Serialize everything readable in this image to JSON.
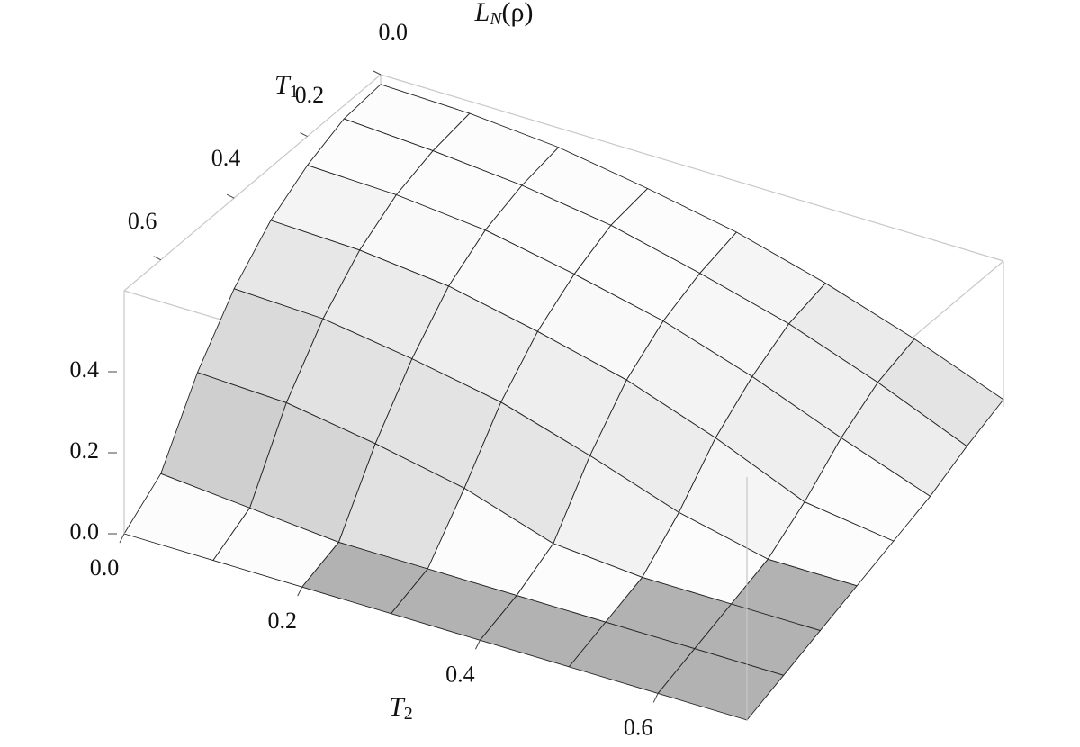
{
  "chart_data": {
    "type": "surface",
    "zlabel": [
      "L",
      "N",
      "(ρ)"
    ],
    "xlabel": [
      "T",
      "2"
    ],
    "ylabel": [
      "T",
      "1"
    ],
    "x": [
      0,
      0.1,
      0.2,
      0.3,
      0.4,
      0.5,
      0.6,
      0.7
    ],
    "y": [
      0,
      0.1,
      0.2,
      0.3,
      0.4,
      0.5,
      0.6,
      0.7
    ],
    "z": [
      [
        0.56,
        0.55,
        0.52,
        0.46,
        0.39,
        0.29,
        0.17,
        0.03
      ],
      [
        0.55,
        0.53,
        0.5,
        0.45,
        0.37,
        0.28,
        0.16,
        0.02
      ],
      [
        0.5,
        0.49,
        0.46,
        0.4,
        0.33,
        0.23,
        0.11,
        0
      ],
      [
        0.43,
        0.42,
        0.39,
        0.33,
        0.26,
        0.16,
        0.04,
        0
      ],
      [
        0.33,
        0.32,
        0.28,
        0.23,
        0.15,
        0.06,
        0,
        0
      ],
      [
        0.2,
        0.19,
        0.15,
        0.1,
        0.02,
        0,
        0,
        0
      ],
      [
        0.04,
        0.02,
        0,
        0,
        0,
        0,
        0,
        0
      ],
      [
        0,
        0,
        0,
        0,
        0,
        0,
        0,
        0
      ]
    ],
    "xlim": [
      0,
      0.7
    ],
    "ylim": [
      0,
      0.7
    ],
    "zlim": [
      0,
      0.6
    ],
    "xticks": [
      {
        "value": 0,
        "label": "0.0"
      },
      0.2,
      0.4,
      0.6
    ],
    "yticks": [
      {
        "value": 0,
        "label": "0.0"
      },
      0.2,
      0.4,
      0.6
    ],
    "zticks": [
      {
        "value": 0,
        "label": "0.0"
      },
      0.2,
      0.4
    ],
    "color": "#f4f4f4",
    "mesh_color": "#222222",
    "box_color": "#c8c8c8"
  }
}
